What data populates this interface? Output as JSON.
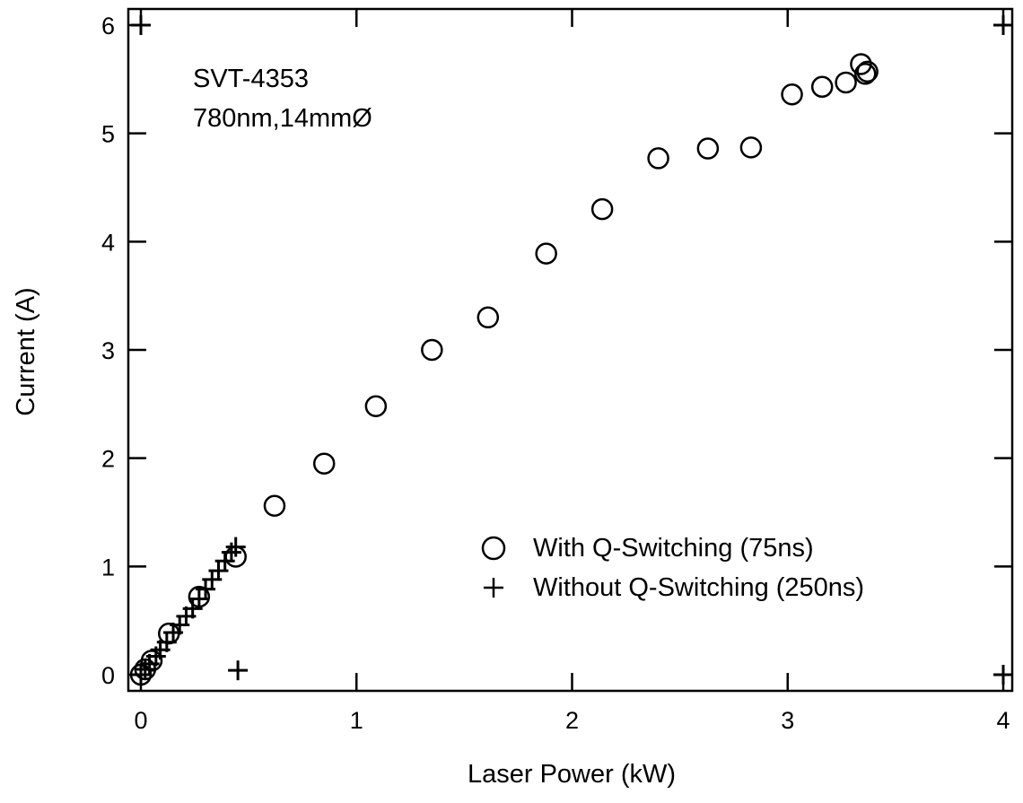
{
  "chart_data": {
    "type": "scatter",
    "title": "",
    "xlabel": "Laser Power (kW)",
    "ylabel": "Current (A)",
    "xlim": [
      0,
      4
    ],
    "ylim": [
      0,
      6
    ],
    "xticks": [
      "0",
      "1",
      "2",
      "3",
      "4"
    ],
    "yticks": [
      "0",
      "1",
      "2",
      "3",
      "4",
      "5",
      "6"
    ],
    "grid": false,
    "legend_position": "lower-right",
    "annotations": [
      "SVT-4353",
      "780nm,14mmØ"
    ],
    "series": [
      {
        "name": "With Q-Switching (75ns)",
        "marker": "circle",
        "points": [
          [
            0.0,
            0.0
          ],
          [
            0.02,
            0.05
          ],
          [
            0.05,
            0.13
          ],
          [
            0.13,
            0.38
          ],
          [
            0.27,
            0.72
          ],
          [
            0.44,
            1.09
          ],
          [
            0.62,
            1.56
          ],
          [
            0.85,
            1.95
          ],
          [
            1.09,
            2.48
          ],
          [
            1.35,
            3.0
          ],
          [
            1.61,
            3.3
          ],
          [
            1.88,
            3.89
          ],
          [
            2.14,
            4.3
          ],
          [
            2.4,
            4.77
          ],
          [
            2.63,
            4.86
          ],
          [
            2.83,
            4.87
          ],
          [
            3.02,
            5.36
          ],
          [
            3.16,
            5.43
          ],
          [
            3.27,
            5.47
          ],
          [
            3.34,
            5.64
          ],
          [
            3.36,
            5.55
          ],
          [
            3.37,
            5.57
          ]
        ]
      },
      {
        "name": "Without Q-Switching (250ns)",
        "marker": "plus",
        "points": [
          [
            0.0,
            0.0
          ],
          [
            0.02,
            0.05
          ],
          [
            0.04,
            0.1
          ],
          [
            0.07,
            0.17
          ],
          [
            0.09,
            0.23
          ],
          [
            0.12,
            0.3
          ],
          [
            0.15,
            0.39
          ],
          [
            0.18,
            0.46
          ],
          [
            0.21,
            0.54
          ],
          [
            0.24,
            0.61
          ],
          [
            0.27,
            0.7
          ],
          [
            0.3,
            0.79
          ],
          [
            0.33,
            0.88
          ],
          [
            0.36,
            0.96
          ],
          [
            0.39,
            1.05
          ],
          [
            0.42,
            1.13
          ],
          [
            0.44,
            1.18
          ],
          [
            0.45,
            0.04
          ],
          [
            0.0,
            6.0
          ],
          [
            4.0,
            6.0
          ],
          [
            4.0,
            0.0
          ]
        ]
      }
    ]
  }
}
